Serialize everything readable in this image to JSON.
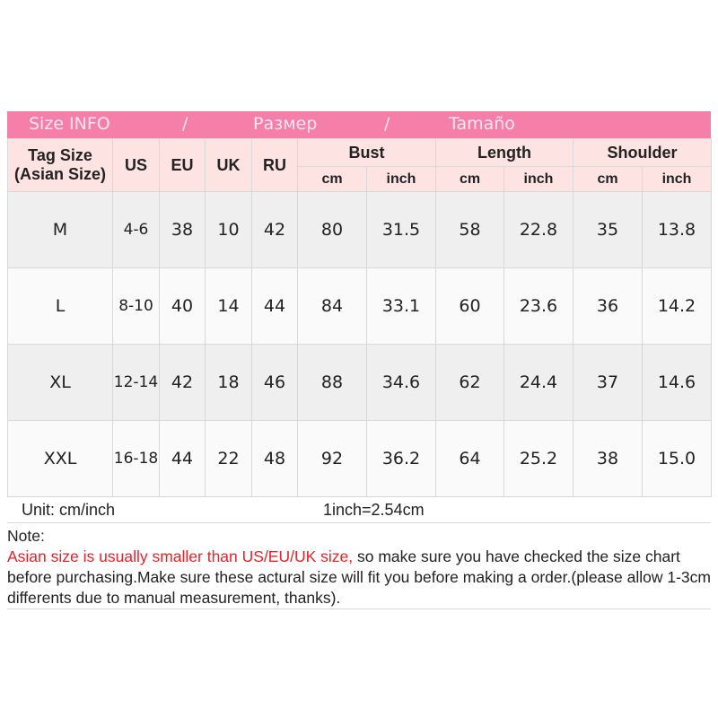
{
  "banner": {
    "left": "Size INFO",
    "sep1": "/",
    "middle": "Размер",
    "sep2": "/",
    "right": "Tamaño"
  },
  "headers": {
    "tag": "Tag Size",
    "tag_sub": "(Asian Size)",
    "us": "US",
    "eu": "EU",
    "uk": "UK",
    "ru": "RU",
    "bust": "Bust",
    "length": "Length",
    "shoulder": "Shoulder",
    "cm": "cm",
    "inch": "inch"
  },
  "rows": [
    [
      "M",
      "4-6",
      "38",
      "10",
      "42",
      "80",
      "31.5",
      "58",
      "22.8",
      "35",
      "13.8"
    ],
    [
      "L",
      "8-10",
      "40",
      "14",
      "44",
      "84",
      "33.1",
      "60",
      "23.6",
      "36",
      "14.2"
    ],
    [
      "XL",
      "12-14",
      "42",
      "18",
      "46",
      "88",
      "34.6",
      "62",
      "24.4",
      "37",
      "14.6"
    ],
    [
      "XXL",
      "16-18",
      "44",
      "22",
      "48",
      "92",
      "36.2",
      "64",
      "25.2",
      "38",
      "15.0"
    ]
  ],
  "unit": {
    "label": "Unit: cm/inch",
    "conversion": "1inch=2.54cm"
  },
  "note": {
    "title": "Note:",
    "warning": "Asian size is usually smaller than US/EU/UK size,",
    "body": " so make sure you have checked the size chart before purchasing.Make sure these actural size will fit you before making a order.(please allow 1-3cm differents due to manual measurement, thanks)."
  },
  "colors": {
    "banner": "#f57fa8",
    "header_bg": "#fde4e3",
    "warning": "#e2252b"
  }
}
